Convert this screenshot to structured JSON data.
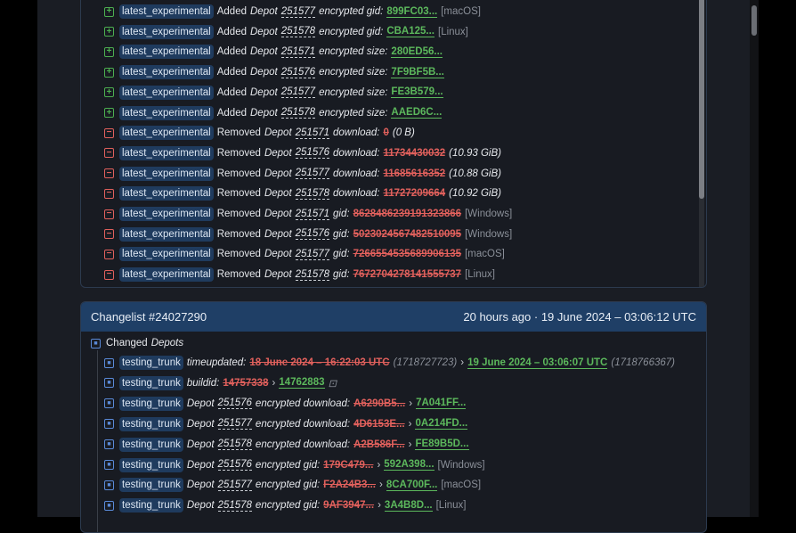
{
  "card1": {
    "tag": "latest_experimental",
    "rows": [
      {
        "type": "add",
        "verb": "Added",
        "depot": "Depot",
        "id": "251577",
        "field": "encrypted gid:",
        "new": "899FC03...",
        "note": "[macOS]"
      },
      {
        "type": "add",
        "verb": "Added",
        "depot": "Depot",
        "id": "251578",
        "field": "encrypted gid:",
        "new": "CBA125...",
        "note": "[Linux]"
      },
      {
        "type": "add",
        "verb": "Added",
        "depot": "Depot",
        "id": "251571",
        "field": "encrypted size:",
        "new": "280ED56..."
      },
      {
        "type": "add",
        "verb": "Added",
        "depot": "Depot",
        "id": "251576",
        "field": "encrypted size:",
        "new": "7F9BF5B..."
      },
      {
        "type": "add",
        "verb": "Added",
        "depot": "Depot",
        "id": "251577",
        "field": "encrypted size:",
        "new": "FE3B579..."
      },
      {
        "type": "add",
        "verb": "Added",
        "depot": "Depot",
        "id": "251578",
        "field": "encrypted size:",
        "new": "AAED6C..."
      },
      {
        "type": "rem",
        "verb": "Removed",
        "depot": "Depot",
        "id": "251571",
        "field": "download:",
        "old": "0",
        "size": "(0 B)"
      },
      {
        "type": "rem",
        "verb": "Removed",
        "depot": "Depot",
        "id": "251576",
        "field": "download:",
        "old": "11734430032",
        "size": "(10.93 GiB)"
      },
      {
        "type": "rem",
        "verb": "Removed",
        "depot": "Depot",
        "id": "251577",
        "field": "download:",
        "old": "11685616352",
        "size": "(10.88 GiB)"
      },
      {
        "type": "rem",
        "verb": "Removed",
        "depot": "Depot",
        "id": "251578",
        "field": "download:",
        "old": "11727209664",
        "size": "(10.92 GiB)"
      },
      {
        "type": "rem",
        "verb": "Removed",
        "depot": "Depot",
        "id": "251571",
        "field": "gid:",
        "old": "8628486239191323866",
        "note": "[Windows]"
      },
      {
        "type": "rem",
        "verb": "Removed",
        "depot": "Depot",
        "id": "251576",
        "field": "gid:",
        "old": "5023024567482510095",
        "note": "[Windows]"
      },
      {
        "type": "rem",
        "verb": "Removed",
        "depot": "Depot",
        "id": "251577",
        "field": "gid:",
        "old": "7266554535689906135",
        "note": "[macOS]"
      },
      {
        "type": "rem",
        "verb": "Removed",
        "depot": "Depot",
        "id": "251578",
        "field": "gid:",
        "old": "7672704278141555737",
        "note": "[Linux]"
      }
    ]
  },
  "card2": {
    "title": "Changelist #24027290",
    "time": "20 hours ago · 19 June 2024 – 03:06:12 UTC",
    "section_label": "Changed",
    "section_italic": "Depots",
    "tag": "testing_trunk",
    "arrow": "›",
    "rows": [
      {
        "field": "timeupdated:",
        "old": "18 June 2024 – 16:22:03 UTC",
        "old_extra": "(1718727723)",
        "new": "19 June 2024 – 03:06:07 UTC",
        "new_extra": "(1718766367)"
      },
      {
        "field": "buildid:",
        "old": "14757338",
        "new": "14762883",
        "new_extra": "⊡"
      },
      {
        "depot": "Depot",
        "id": "251576",
        "field": "encrypted download:",
        "old": "A6290B5...",
        "new": "7A041FF..."
      },
      {
        "depot": "Depot",
        "id": "251577",
        "field": "encrypted download:",
        "old": "4D6153E...",
        "new": "0A214FD..."
      },
      {
        "depot": "Depot",
        "id": "251578",
        "field": "encrypted download:",
        "old": "A2B586F...",
        "new": "FE89B5D..."
      },
      {
        "depot": "Depot",
        "id": "251576",
        "field": "encrypted gid:",
        "old": "179C479...",
        "new": "592A398...",
        "note": "[Windows]"
      },
      {
        "depot": "Depot",
        "id": "251577",
        "field": "encrypted gid:",
        "old": "F2A24B3...",
        "new": "8CA700F...",
        "note": "[macOS]"
      },
      {
        "depot": "Depot",
        "id": "251578",
        "field": "encrypted gid:",
        "old": "9AF3947...",
        "new": "3A4B8D...",
        "note": "[Linux]"
      }
    ]
  },
  "colors": {
    "added": "#5cb85c",
    "removed": "#e0605c",
    "header": "#1f3f66",
    "tag": "#1f3b5e"
  }
}
